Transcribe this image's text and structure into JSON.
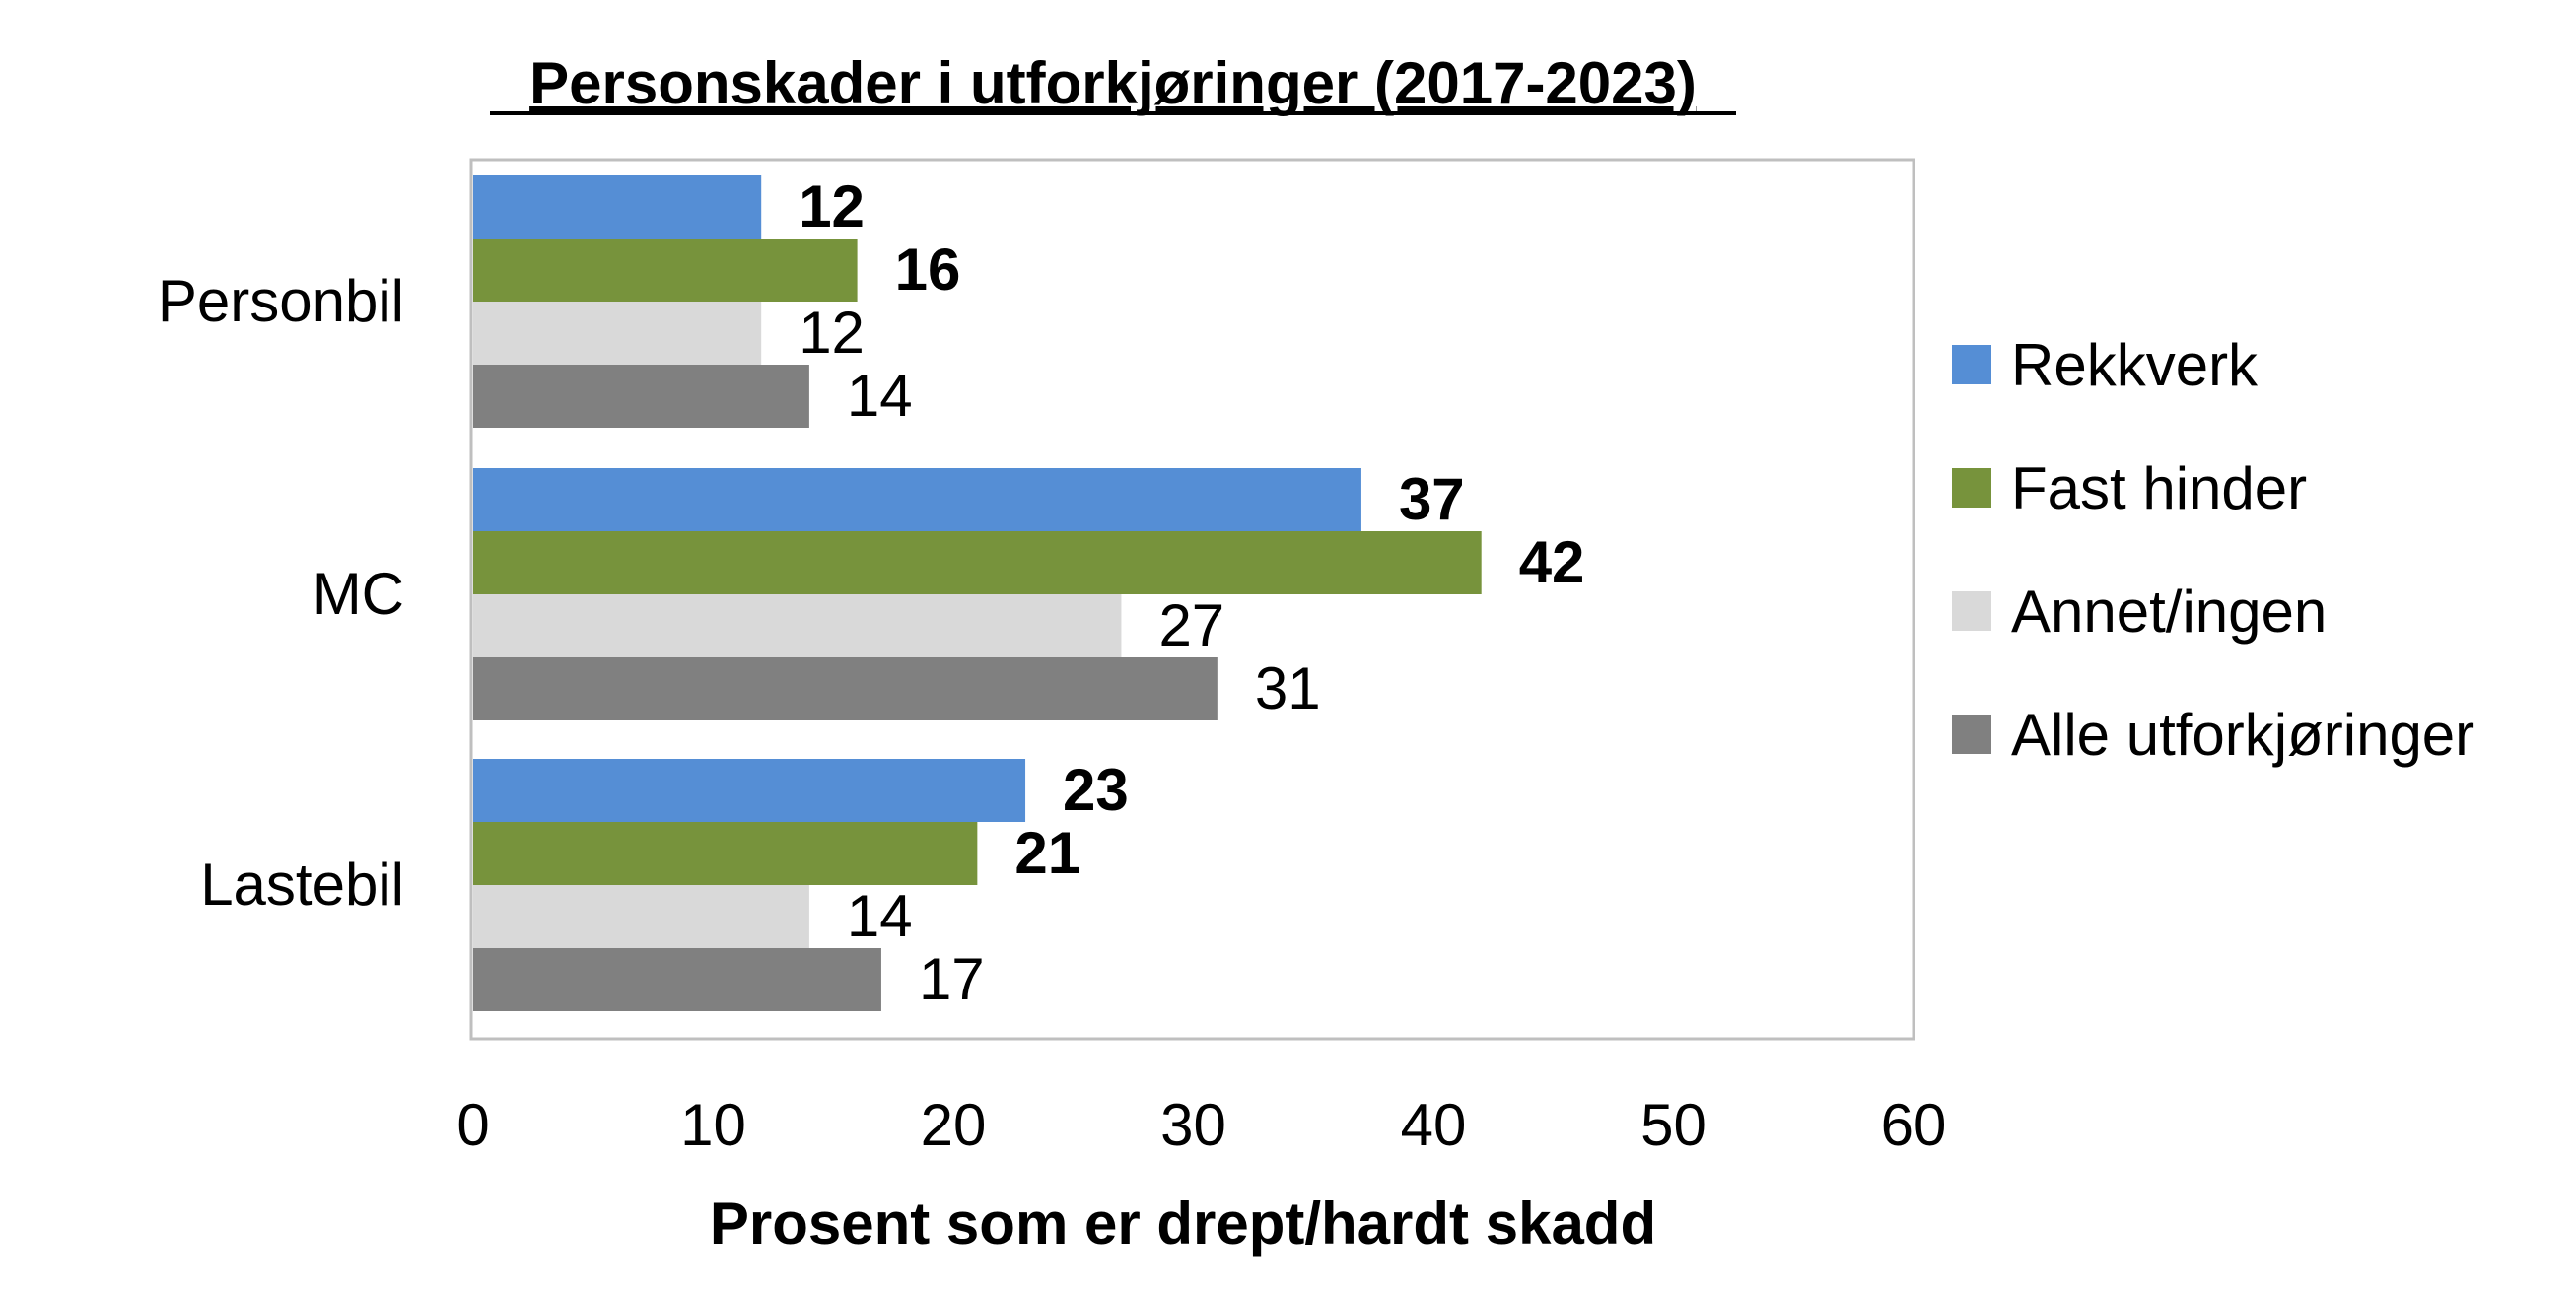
{
  "chart_data": {
    "type": "bar",
    "orientation": "horizontal",
    "title": "Personskader i utforkjøringer (2017-2023)",
    "xlabel": "Prosent som er drept/hardt skadd",
    "ylabel": "",
    "xlim": [
      0,
      60
    ],
    "xticks": [
      "0",
      "10",
      "20",
      "30",
      "40",
      "50",
      "60"
    ],
    "categories": [
      "Personbil",
      "MC",
      "Lastebil"
    ],
    "grid": false,
    "legend_position": "right",
    "series": [
      {
        "name": "Rekkverk",
        "values": [
          12,
          37,
          23
        ],
        "color": "#558ED5",
        "label_bold": true
      },
      {
        "name": "Fast hinder",
        "values": [
          16,
          42,
          21
        ],
        "color": "#77933C",
        "label_bold": true
      },
      {
        "name": "Annet/ingen",
        "values": [
          12,
          27,
          14
        ],
        "color": "#D9D9D9",
        "label_bold": false
      },
      {
        "name": "Alle utforkjøringer",
        "values": [
          14,
          31,
          17
        ],
        "color": "#808080",
        "label_bold": false
      }
    ]
  }
}
